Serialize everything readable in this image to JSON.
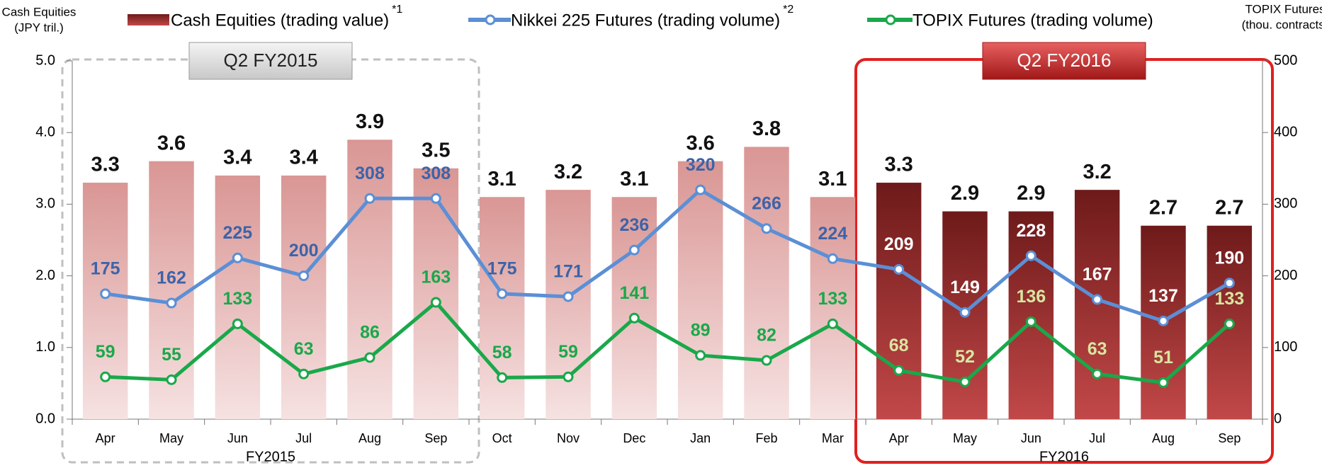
{
  "chart_data": {
    "type": "bar-line",
    "y_label": [
      "Cash Equities",
      "(JPY tril.)"
    ],
    "y2_label": [
      "TOPIX Futures",
      "(thou. contracts)"
    ],
    "categories": [
      "Apr",
      "May",
      "Jun",
      "Jul",
      "Aug",
      "Sep",
      "Oct",
      "Nov",
      "Dec",
      "Jan",
      "Feb",
      "Mar",
      "Apr",
      "May",
      "Jun",
      "Jul",
      "Aug",
      "Sep"
    ],
    "groups": [
      {
        "label": "FY2015",
        "from": 0,
        "to": 5
      },
      {
        "label": "FY2016",
        "from": 12,
        "to": 17
      }
    ],
    "highlights": [
      {
        "label": "Q2 FY2015",
        "from": 0,
        "to": 5,
        "style": "dashed",
        "color": "#bfbfbf"
      },
      {
        "label": "Q2 FY2016",
        "from": 12,
        "to": 17,
        "style": "solid",
        "color": "#e02020"
      }
    ],
    "series": [
      {
        "name": "Cash Equities (trading value)",
        "note": "*1",
        "kind": "bar",
        "color": "#d99694",
        "highlight_color": "#7a1f1f",
        "values": [
          3.3,
          3.6,
          3.4,
          3.4,
          3.9,
          3.5,
          3.1,
          3.2,
          3.1,
          3.6,
          3.8,
          3.1,
          3.3,
          2.9,
          2.9,
          3.2,
          2.7,
          2.7
        ]
      },
      {
        "name": "Nikkei 225 Futures (trading volume)",
        "note": "*2",
        "kind": "line",
        "axis": "y2",
        "color": "#5b8fd6",
        "label_color": "#3d63a8",
        "values": [
          175,
          162,
          225,
          200,
          308,
          308,
          175,
          171,
          236,
          320,
          266,
          224,
          209,
          149,
          228,
          167,
          137,
          190
        ]
      },
      {
        "name": "TOPIX Futures (trading volume)",
        "kind": "line",
        "axis": "y2",
        "color": "#1aa84a",
        "label_color": "#1aa84a",
        "values": [
          59,
          55,
          133,
          63,
          86,
          163,
          58,
          59,
          141,
          89,
          82,
          133,
          68,
          52,
          136,
          63,
          51,
          133
        ]
      }
    ],
    "ylim": [
      0,
      5
    ],
    "yticks": [
      {
        "value": 0,
        "label": "0.0"
      },
      {
        "value": 1,
        "label": "1.0"
      },
      {
        "value": 2,
        "label": "2.0"
      },
      {
        "value": 3,
        "label": "3.0"
      },
      {
        "value": 4,
        "label": "4.0"
      },
      {
        "value": 5,
        "label": "5.0"
      }
    ],
    "y2lim": [
      0,
      500
    ],
    "y2ticks": [
      0,
      100,
      200,
      300,
      400,
      500
    ]
  }
}
